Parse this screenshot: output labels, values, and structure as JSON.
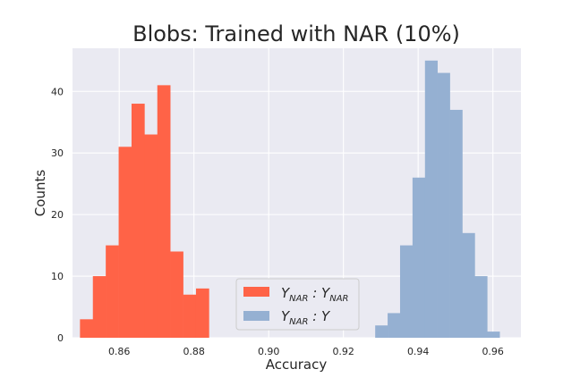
{
  "chart_data": {
    "type": "histogram",
    "title": "Blobs: Trained with NAR (10%)",
    "xlabel": "Accuracy",
    "ylabel": "Counts",
    "xlim": [
      0.8475,
      0.9675
    ],
    "ylim": [
      0,
      47
    ],
    "xticks": [
      0.86,
      0.88,
      0.9,
      0.92,
      0.94,
      0.96
    ],
    "xtick_labels": [
      "0.86",
      "0.88",
      "0.90",
      "0.92",
      "0.94",
      "0.96"
    ],
    "yticks": [
      0,
      10,
      20,
      30,
      40
    ],
    "ytick_labels": [
      "0",
      "10",
      "20",
      "30",
      "40"
    ],
    "grid": true,
    "legend_position": "bottom-center",
    "series": [
      {
        "name": "Y_NAR : Y_NAR",
        "color": "#ff6347",
        "bin_width": 0.00345,
        "bin_starts": [
          0.8495,
          0.85295,
          0.8564,
          0.85985,
          0.8633,
          0.86675,
          0.8702,
          0.87365,
          0.8771,
          0.88055
        ],
        "counts": [
          3,
          10,
          15,
          31,
          38,
          33,
          41,
          14,
          7,
          8
        ]
      },
      {
        "name": "Y_NAR : Y",
        "color": "#95b0d2",
        "bin_width": 0.00333,
        "bin_starts": [
          0.9285,
          0.93183,
          0.93516,
          0.93849,
          0.94182,
          0.94515,
          0.94848,
          0.95181,
          0.95514,
          0.95847
        ],
        "counts": [
          2,
          4,
          15,
          26,
          45,
          43,
          37,
          17,
          10,
          1
        ]
      }
    ]
  }
}
